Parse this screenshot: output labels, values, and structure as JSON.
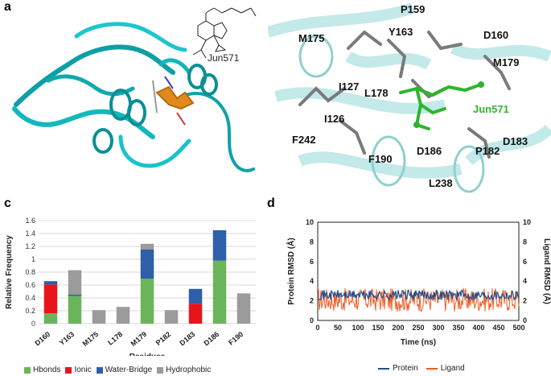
{
  "panel_labels": {
    "a": "a",
    "b": "b",
    "c": "c",
    "d": "d"
  },
  "panel_a": {
    "ligand_label": "Jun571"
  },
  "panel_b": {
    "residues": [
      "P159",
      "D160",
      "M175",
      "Y163",
      "M179",
      "I127",
      "L178",
      "I126",
      "F242",
      "D186",
      "P182",
      "D183",
      "F190",
      "L238"
    ],
    "ligand_label": "Jun571"
  },
  "chart_data": [
    {
      "type": "bar",
      "stacked": true,
      "categories": [
        "D160",
        "Y163",
        "M175",
        "L178",
        "M179",
        "P182",
        "D183",
        "D186",
        "F190"
      ],
      "series": [
        {
          "name": "Hbonds",
          "color": "#6ab55a",
          "values": [
            0.16,
            0.43,
            0,
            0,
            0.7,
            0,
            0,
            0.98,
            0
          ]
        },
        {
          "name": "Ionic",
          "color": "#e8141b",
          "values": [
            0.45,
            0,
            0,
            0,
            0,
            0,
            0.31,
            0,
            0
          ]
        },
        {
          "name": "Water-Bridge",
          "color": "#2e5fa8",
          "values": [
            0.05,
            0.02,
            0,
            0,
            0.45,
            0,
            0.23,
            0.47,
            0
          ]
        },
        {
          "name": "Hydrophobic",
          "color": "#9b9b9b",
          "values": [
            0,
            0.38,
            0.21,
            0.26,
            0.09,
            0.21,
            0,
            0,
            0.47
          ]
        }
      ],
      "ylabel": "Relative Frequency",
      "xlabel": "Residues",
      "ylim": [
        0,
        1.6
      ],
      "yticks": [
        "0",
        "0.2",
        "0.4",
        "0.6",
        "0.8",
        "1",
        "1.2",
        "1.4",
        "1.6"
      ],
      "grid": true,
      "legend": "bottom"
    },
    {
      "type": "line",
      "xlabel": "Time (ns)",
      "ylabel_left": "Protein RMSD (Å)",
      "ylabel_right": "Ligand RMSD (Å)",
      "xlim": [
        0,
        500
      ],
      "ylim_left": [
        0,
        10
      ],
      "ylim_right": [
        0,
        10
      ],
      "xticks": [
        "0",
        "50",
        "100",
        "150",
        "200",
        "250",
        "300",
        "350",
        "400",
        "450",
        "500"
      ],
      "yticks_left": [
        "0",
        "2",
        "4",
        "6",
        "8",
        "10"
      ],
      "yticks_right": [
        "0",
        "2",
        "4",
        "6",
        "8",
        "10"
      ],
      "series": [
        {
          "name": "Protein",
          "color": "#1f4e8c",
          "mean": 2.6,
          "range": [
            1.8,
            3.3
          ]
        },
        {
          "name": "Ligand",
          "color": "#f05a23",
          "mean": 2.1,
          "range": [
            0.8,
            4.3
          ]
        }
      ],
      "legend": "bottom"
    }
  ]
}
